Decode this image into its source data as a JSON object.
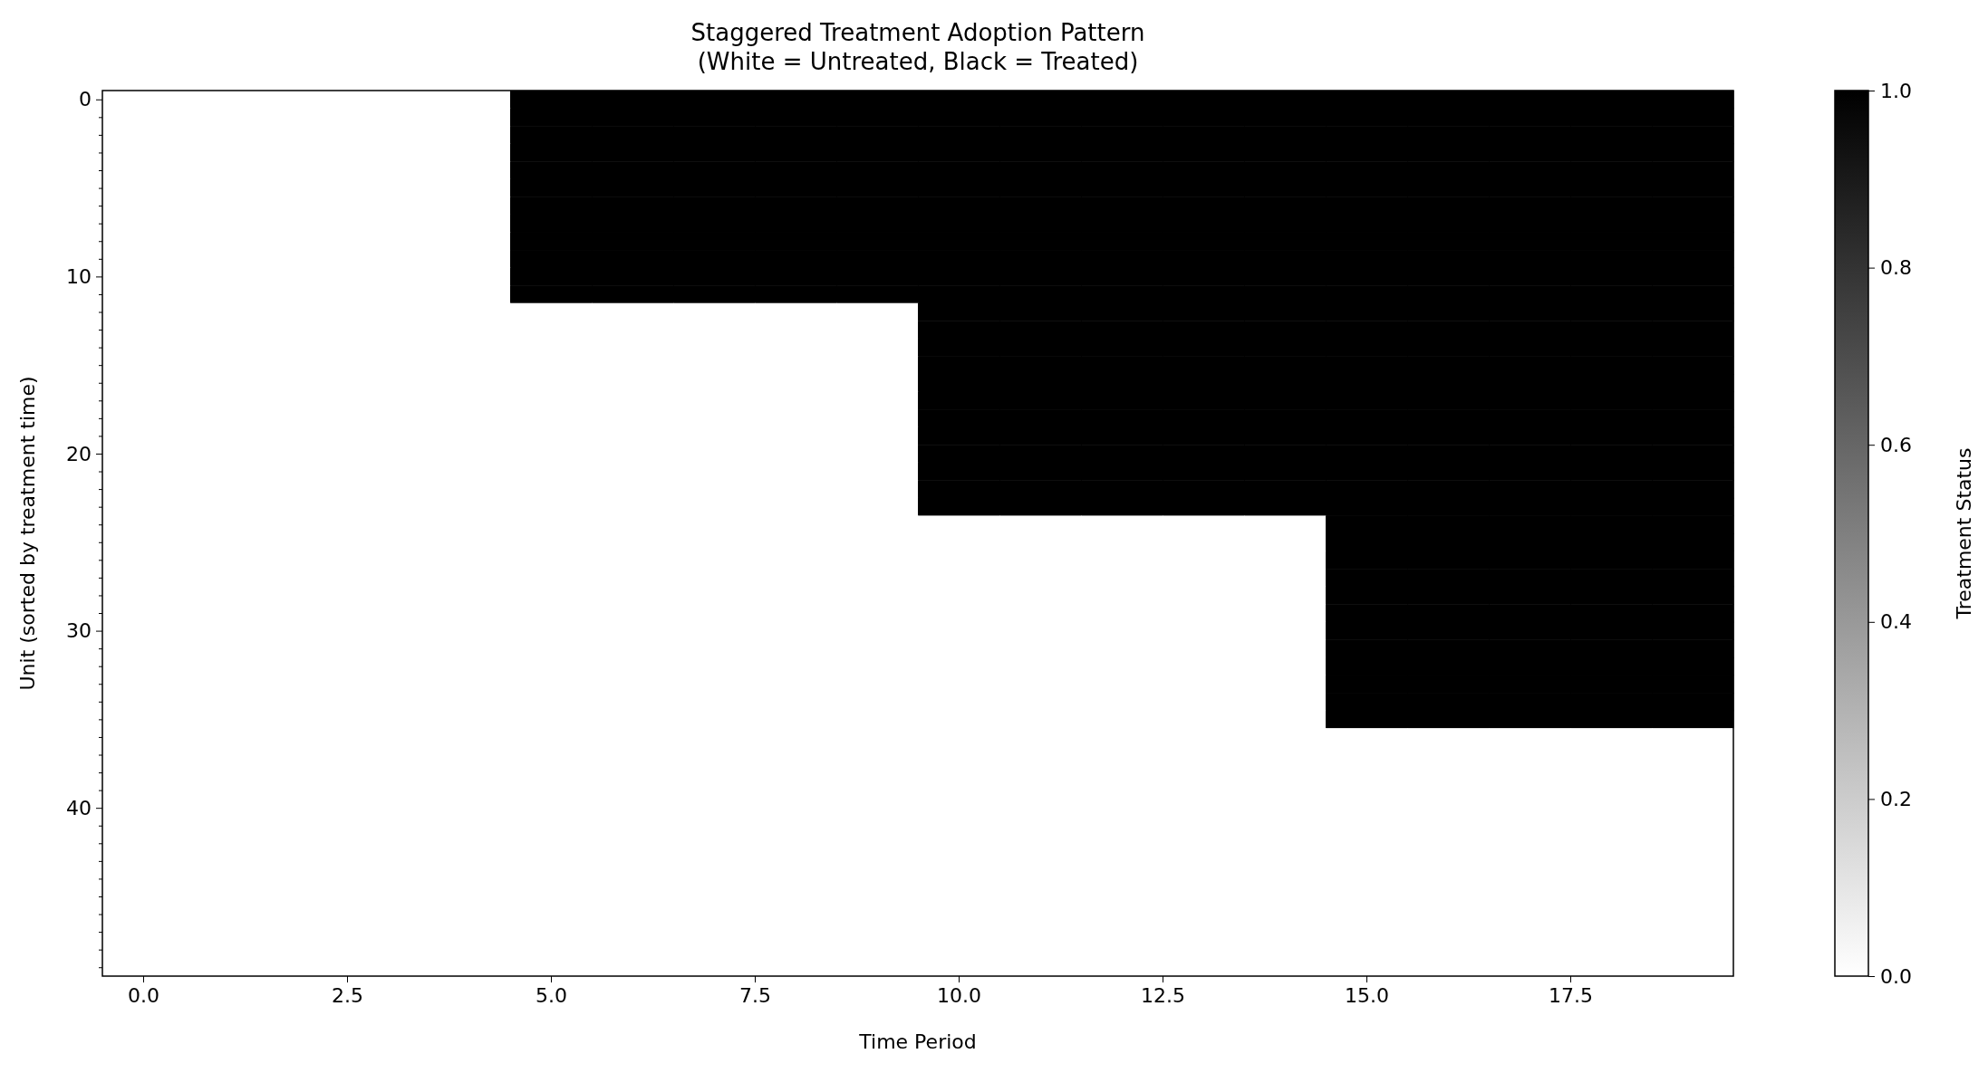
{
  "chart_data": {
    "type": "heatmap",
    "title": "Staggered Treatment Adoption Pattern\n(White = Untreated, Black = Treated)",
    "xlabel": "Time Period",
    "ylabel": "Unit (sorted by treatment time)",
    "clabel": "Treatment Status",
    "x": [
      0,
      1,
      2,
      3,
      4,
      5,
      6,
      7,
      8,
      9,
      10,
      11,
      12,
      13,
      14,
      15,
      16,
      17,
      18,
      19
    ],
    "y_categories": [
      "0",
      null,
      null,
      null,
      null,
      null,
      null,
      null,
      null,
      null,
      "10",
      null,
      null,
      null,
      null,
      null,
      null,
      null,
      null,
      null,
      "20",
      null,
      null,
      null,
      null,
      null,
      null,
      null,
      null,
      null,
      "30",
      null,
      null,
      null,
      null,
      null,
      null,
      null,
      null,
      null,
      "40",
      null,
      null,
      null,
      null,
      null,
      null,
      null,
      null,
      null
    ],
    "xlim": [
      -0.5,
      19.5
    ],
    "xticks": [
      {
        "value": 0,
        "label": "0.0"
      },
      2.5,
      {
        "value": 5,
        "label": "5.0"
      },
      7.5,
      {
        "value": 10,
        "label": "10.0"
      },
      12.5,
      {
        "value": 15,
        "label": "15.0"
      },
      17.5
    ],
    "clim": [
      0,
      1
    ],
    "cticks": [
      {
        "value": 0,
        "label": "0.0"
      },
      0.2,
      0.4,
      0.6,
      0.8,
      {
        "value": 1,
        "label": "1.0"
      }
    ],
    "cells": [
      [
        0,
        0,
        0,
        0,
        0,
        1,
        1,
        1,
        1,
        1,
        1,
        1,
        1,
        1,
        1,
        1,
        1,
        1,
        1,
        1
      ],
      [
        0,
        0,
        0,
        0,
        0,
        1,
        1,
        1,
        1,
        1,
        1,
        1,
        1,
        1,
        1,
        1,
        1,
        1,
        1,
        1
      ],
      [
        0,
        0,
        0,
        0,
        0,
        1,
        1,
        1,
        1,
        1,
        1,
        1,
        1,
        1,
        1,
        1,
        1,
        1,
        1,
        1
      ],
      [
        0,
        0,
        0,
        0,
        0,
        1,
        1,
        1,
        1,
        1,
        1,
        1,
        1,
        1,
        1,
        1,
        1,
        1,
        1,
        1
      ],
      [
        0,
        0,
        0,
        0,
        0,
        1,
        1,
        1,
        1,
        1,
        1,
        1,
        1,
        1,
        1,
        1,
        1,
        1,
        1,
        1
      ],
      [
        0,
        0,
        0,
        0,
        0,
        1,
        1,
        1,
        1,
        1,
        1,
        1,
        1,
        1,
        1,
        1,
        1,
        1,
        1,
        1
      ],
      [
        0,
        0,
        0,
        0,
        0,
        1,
        1,
        1,
        1,
        1,
        1,
        1,
        1,
        1,
        1,
        1,
        1,
        1,
        1,
        1
      ],
      [
        0,
        0,
        0,
        0,
        0,
        1,
        1,
        1,
        1,
        1,
        1,
        1,
        1,
        1,
        1,
        1,
        1,
        1,
        1,
        1
      ],
      [
        0,
        0,
        0,
        0,
        0,
        1,
        1,
        1,
        1,
        1,
        1,
        1,
        1,
        1,
        1,
        1,
        1,
        1,
        1,
        1
      ],
      [
        0,
        0,
        0,
        0,
        0,
        1,
        1,
        1,
        1,
        1,
        1,
        1,
        1,
        1,
        1,
        1,
        1,
        1,
        1,
        1
      ],
      [
        0,
        0,
        0,
        0,
        0,
        1,
        1,
        1,
        1,
        1,
        1,
        1,
        1,
        1,
        1,
        1,
        1,
        1,
        1,
        1
      ],
      [
        0,
        0,
        0,
        0,
        0,
        1,
        1,
        1,
        1,
        1,
        1,
        1,
        1,
        1,
        1,
        1,
        1,
        1,
        1,
        1
      ],
      [
        0,
        0,
        0,
        0,
        0,
        0,
        0,
        0,
        0,
        0,
        1,
        1,
        1,
        1,
        1,
        1,
        1,
        1,
        1,
        1
      ],
      [
        0,
        0,
        0,
        0,
        0,
        0,
        0,
        0,
        0,
        0,
        1,
        1,
        1,
        1,
        1,
        1,
        1,
        1,
        1,
        1
      ],
      [
        0,
        0,
        0,
        0,
        0,
        0,
        0,
        0,
        0,
        0,
        1,
        1,
        1,
        1,
        1,
        1,
        1,
        1,
        1,
        1
      ],
      [
        0,
        0,
        0,
        0,
        0,
        0,
        0,
        0,
        0,
        0,
        1,
        1,
        1,
        1,
        1,
        1,
        1,
        1,
        1,
        1
      ],
      [
        0,
        0,
        0,
        0,
        0,
        0,
        0,
        0,
        0,
        0,
        1,
        1,
        1,
        1,
        1,
        1,
        1,
        1,
        1,
        1
      ],
      [
        0,
        0,
        0,
        0,
        0,
        0,
        0,
        0,
        0,
        0,
        1,
        1,
        1,
        1,
        1,
        1,
        1,
        1,
        1,
        1
      ],
      [
        0,
        0,
        0,
        0,
        0,
        0,
        0,
        0,
        0,
        0,
        1,
        1,
        1,
        1,
        1,
        1,
        1,
        1,
        1,
        1
      ],
      [
        0,
        0,
        0,
        0,
        0,
        0,
        0,
        0,
        0,
        0,
        1,
        1,
        1,
        1,
        1,
        1,
        1,
        1,
        1,
        1
      ],
      [
        0,
        0,
        0,
        0,
        0,
        0,
        0,
        0,
        0,
        0,
        1,
        1,
        1,
        1,
        1,
        1,
        1,
        1,
        1,
        1
      ],
      [
        0,
        0,
        0,
        0,
        0,
        0,
        0,
        0,
        0,
        0,
        1,
        1,
        1,
        1,
        1,
        1,
        1,
        1,
        1,
        1
      ],
      [
        0,
        0,
        0,
        0,
        0,
        0,
        0,
        0,
        0,
        0,
        1,
        1,
        1,
        1,
        1,
        1,
        1,
        1,
        1,
        1
      ],
      [
        0,
        0,
        0,
        0,
        0,
        0,
        0,
        0,
        0,
        0,
        1,
        1,
        1,
        1,
        1,
        1,
        1,
        1,
        1,
        1
      ],
      [
        0,
        0,
        0,
        0,
        0,
        0,
        0,
        0,
        0,
        0,
        0,
        0,
        0,
        0,
        0,
        1,
        1,
        1,
        1,
        1
      ],
      [
        0,
        0,
        0,
        0,
        0,
        0,
        0,
        0,
        0,
        0,
        0,
        0,
        0,
        0,
        0,
        1,
        1,
        1,
        1,
        1
      ],
      [
        0,
        0,
        0,
        0,
        0,
        0,
        0,
        0,
        0,
        0,
        0,
        0,
        0,
        0,
        0,
        1,
        1,
        1,
        1,
        1
      ],
      [
        0,
        0,
        0,
        0,
        0,
        0,
        0,
        0,
        0,
        0,
        0,
        0,
        0,
        0,
        0,
        1,
        1,
        1,
        1,
        1
      ],
      [
        0,
        0,
        0,
        0,
        0,
        0,
        0,
        0,
        0,
        0,
        0,
        0,
        0,
        0,
        0,
        1,
        1,
        1,
        1,
        1
      ],
      [
        0,
        0,
        0,
        0,
        0,
        0,
        0,
        0,
        0,
        0,
        0,
        0,
        0,
        0,
        0,
        1,
        1,
        1,
        1,
        1
      ],
      [
        0,
        0,
        0,
        0,
        0,
        0,
        0,
        0,
        0,
        0,
        0,
        0,
        0,
        0,
        0,
        1,
        1,
        1,
        1,
        1
      ],
      [
        0,
        0,
        0,
        0,
        0,
        0,
        0,
        0,
        0,
        0,
        0,
        0,
        0,
        0,
        0,
        1,
        1,
        1,
        1,
        1
      ],
      [
        0,
        0,
        0,
        0,
        0,
        0,
        0,
        0,
        0,
        0,
        0,
        0,
        0,
        0,
        0,
        1,
        1,
        1,
        1,
        1
      ],
      [
        0,
        0,
        0,
        0,
        0,
        0,
        0,
        0,
        0,
        0,
        0,
        0,
        0,
        0,
        0,
        1,
        1,
        1,
        1,
        1
      ],
      [
        0,
        0,
        0,
        0,
        0,
        0,
        0,
        0,
        0,
        0,
        0,
        0,
        0,
        0,
        0,
        1,
        1,
        1,
        1,
        1
      ],
      [
        0,
        0,
        0,
        0,
        0,
        0,
        0,
        0,
        0,
        0,
        0,
        0,
        0,
        0,
        0,
        1,
        1,
        1,
        1,
        1
      ],
      [
        0,
        0,
        0,
        0,
        0,
        0,
        0,
        0,
        0,
        0,
        0,
        0,
        0,
        0,
        0,
        0,
        0,
        0,
        0,
        0
      ],
      [
        0,
        0,
        0,
        0,
        0,
        0,
        0,
        0,
        0,
        0,
        0,
        0,
        0,
        0,
        0,
        0,
        0,
        0,
        0,
        0
      ],
      [
        0,
        0,
        0,
        0,
        0,
        0,
        0,
        0,
        0,
        0,
        0,
        0,
        0,
        0,
        0,
        0,
        0,
        0,
        0,
        0
      ],
      [
        0,
        0,
        0,
        0,
        0,
        0,
        0,
        0,
        0,
        0,
        0,
        0,
        0,
        0,
        0,
        0,
        0,
        0,
        0,
        0
      ],
      [
        0,
        0,
        0,
        0,
        0,
        0,
        0,
        0,
        0,
        0,
        0,
        0,
        0,
        0,
        0,
        0,
        0,
        0,
        0,
        0
      ],
      [
        0,
        0,
        0,
        0,
        0,
        0,
        0,
        0,
        0,
        0,
        0,
        0,
        0,
        0,
        0,
        0,
        0,
        0,
        0,
        0
      ],
      [
        0,
        0,
        0,
        0,
        0,
        0,
        0,
        0,
        0,
        0,
        0,
        0,
        0,
        0,
        0,
        0,
        0,
        0,
        0,
        0
      ],
      [
        0,
        0,
        0,
        0,
        0,
        0,
        0,
        0,
        0,
        0,
        0,
        0,
        0,
        0,
        0,
        0,
        0,
        0,
        0,
        0
      ],
      [
        0,
        0,
        0,
        0,
        0,
        0,
        0,
        0,
        0,
        0,
        0,
        0,
        0,
        0,
        0,
        0,
        0,
        0,
        0,
        0
      ],
      [
        0,
        0,
        0,
        0,
        0,
        0,
        0,
        0,
        0,
        0,
        0,
        0,
        0,
        0,
        0,
        0,
        0,
        0,
        0,
        0
      ],
      [
        0,
        0,
        0,
        0,
        0,
        0,
        0,
        0,
        0,
        0,
        0,
        0,
        0,
        0,
        0,
        0,
        0,
        0,
        0,
        0
      ],
      [
        0,
        0,
        0,
        0,
        0,
        0,
        0,
        0,
        0,
        0,
        0,
        0,
        0,
        0,
        0,
        0,
        0,
        0,
        0,
        0
      ],
      [
        0,
        0,
        0,
        0,
        0,
        0,
        0,
        0,
        0,
        0,
        0,
        0,
        0,
        0,
        0,
        0,
        0,
        0,
        0,
        0
      ],
      [
        0,
        0,
        0,
        0,
        0,
        0,
        0,
        0,
        0,
        0,
        0,
        0,
        0,
        0,
        0,
        0,
        0,
        0,
        0,
        0
      ]
    ]
  }
}
